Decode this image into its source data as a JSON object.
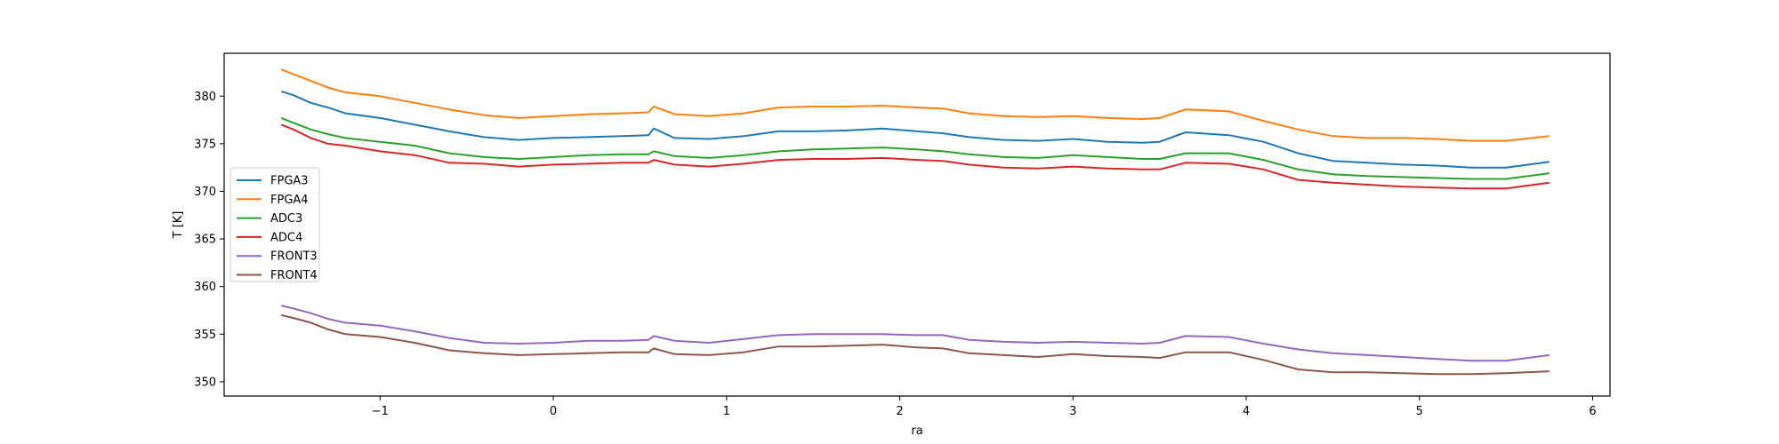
{
  "chart_data": {
    "type": "line",
    "title": "",
    "xlabel": "ra",
    "ylabel": "T [K]",
    "xlim": [
      -1.9,
      6.1
    ],
    "ylim": [
      348.5,
      384.5
    ],
    "xticks": [
      -1,
      0,
      1,
      2,
      3,
      4,
      5,
      6
    ],
    "xtick_labels": [
      "−1",
      "0",
      "1",
      "2",
      "3",
      "4",
      "5",
      "6"
    ],
    "yticks": [
      350,
      355,
      360,
      365,
      370,
      375,
      380
    ],
    "ytick_labels": [
      "350",
      "355",
      "360",
      "365",
      "370",
      "375",
      "380"
    ],
    "grid": false,
    "legend_position": "center-left",
    "x": [
      -1.57,
      -1.5,
      -1.4,
      -1.3,
      -1.2,
      -1.0,
      -0.8,
      -0.6,
      -0.4,
      -0.2,
      0.0,
      0.2,
      0.4,
      0.55,
      0.58,
      0.7,
      0.9,
      1.1,
      1.3,
      1.5,
      1.7,
      1.9,
      2.1,
      2.25,
      2.4,
      2.6,
      2.8,
      3.0,
      3.2,
      3.4,
      3.5,
      3.65,
      3.9,
      4.1,
      4.3,
      4.5,
      4.7,
      4.9,
      5.1,
      5.3,
      5.5,
      5.75
    ],
    "series": [
      {
        "name": "FPGA3",
        "color": "#1f77b4",
        "values": [
          380.5,
          380.1,
          379.3,
          378.8,
          378.2,
          377.7,
          377.0,
          376.3,
          375.7,
          375.4,
          375.6,
          375.7,
          375.8,
          375.9,
          376.6,
          375.6,
          375.5,
          375.8,
          376.3,
          376.3,
          376.4,
          376.6,
          376.3,
          376.1,
          375.7,
          375.4,
          375.3,
          375.5,
          375.2,
          375.1,
          375.2,
          376.2,
          375.9,
          375.2,
          374.0,
          373.2,
          373.0,
          372.8,
          372.7,
          372.5,
          372.5,
          373.1
        ]
      },
      {
        "name": "FPGA4",
        "color": "#ff7f0e",
        "values": [
          382.8,
          382.3,
          381.6,
          380.9,
          380.4,
          380.0,
          379.3,
          378.6,
          378.0,
          377.7,
          377.9,
          378.1,
          378.2,
          378.3,
          378.9,
          378.1,
          377.9,
          378.2,
          378.8,
          378.9,
          378.9,
          379.0,
          378.8,
          378.7,
          378.2,
          377.9,
          377.8,
          377.9,
          377.7,
          377.6,
          377.7,
          378.6,
          378.4,
          377.4,
          376.5,
          375.8,
          375.6,
          375.6,
          375.5,
          375.3,
          375.3,
          375.8
        ]
      },
      {
        "name": "ADC3",
        "color": "#2ca02c",
        "values": [
          377.7,
          377.2,
          376.5,
          376.0,
          375.6,
          375.2,
          374.8,
          374.0,
          373.6,
          373.4,
          373.6,
          373.8,
          373.9,
          373.9,
          374.2,
          373.7,
          373.5,
          373.8,
          374.2,
          374.4,
          374.5,
          374.6,
          374.4,
          374.2,
          373.9,
          373.6,
          373.5,
          373.8,
          373.6,
          373.4,
          373.4,
          374.0,
          374.0,
          373.3,
          372.3,
          371.8,
          371.6,
          371.5,
          371.4,
          371.3,
          371.3,
          371.9
        ]
      },
      {
        "name": "ADC4",
        "color": "#d62728",
        "values": [
          377.0,
          376.5,
          375.6,
          375.0,
          374.8,
          374.2,
          373.8,
          373.0,
          372.9,
          372.6,
          372.8,
          372.9,
          373.0,
          373.0,
          373.3,
          372.8,
          372.6,
          372.9,
          373.3,
          373.4,
          373.4,
          373.5,
          373.3,
          373.2,
          372.8,
          372.5,
          372.4,
          372.6,
          372.4,
          372.3,
          372.3,
          373.0,
          372.9,
          372.3,
          371.2,
          370.9,
          370.7,
          370.5,
          370.4,
          370.3,
          370.3,
          370.9
        ]
      },
      {
        "name": "FRONT3",
        "color": "#9467bd",
        "values": [
          358.0,
          357.7,
          357.2,
          356.6,
          356.2,
          355.9,
          355.3,
          354.6,
          354.1,
          354.0,
          354.1,
          354.3,
          354.3,
          354.4,
          354.8,
          354.3,
          354.1,
          354.5,
          354.9,
          355.0,
          355.0,
          355.0,
          354.9,
          354.9,
          354.4,
          354.2,
          354.1,
          354.2,
          354.1,
          354.0,
          354.1,
          354.8,
          354.7,
          354.0,
          353.4,
          353.0,
          352.8,
          352.6,
          352.4,
          352.2,
          352.2,
          352.8
        ]
      },
      {
        "name": "FRONT4",
        "color": "#8c564b",
        "values": [
          357.0,
          356.7,
          356.2,
          355.5,
          355.0,
          354.7,
          354.1,
          353.3,
          353.0,
          352.8,
          352.9,
          353.0,
          353.1,
          353.1,
          353.5,
          352.9,
          352.8,
          353.1,
          353.7,
          353.7,
          353.8,
          353.9,
          353.6,
          353.5,
          353.0,
          352.8,
          352.6,
          352.9,
          352.7,
          352.6,
          352.5,
          353.1,
          353.1,
          352.3,
          351.3,
          351.0,
          351.0,
          350.9,
          350.8,
          350.8,
          350.9,
          351.1
        ]
      }
    ]
  }
}
